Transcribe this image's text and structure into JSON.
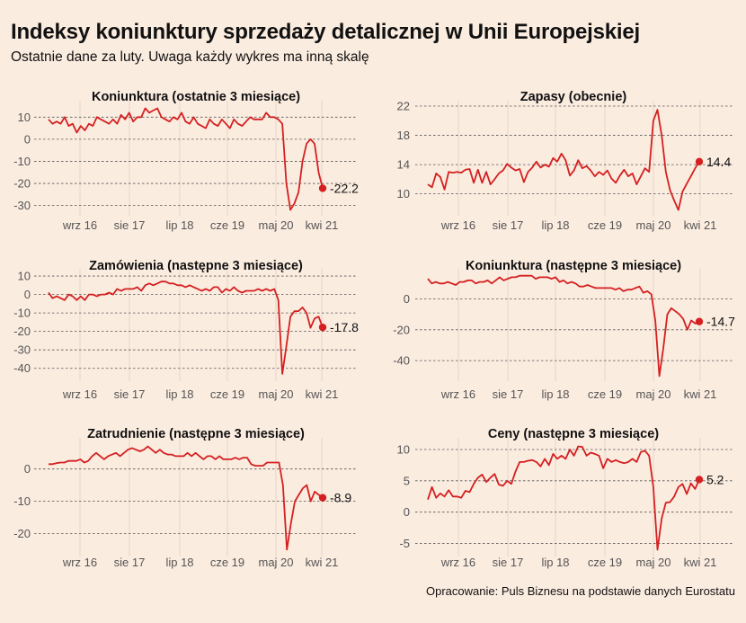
{
  "header": {
    "title": "Indeksy koniunktury sprzedaży detalicznej w Unii Europejskiej",
    "subtitle": "Ostatnie dane za luty. Uwaga każdy wykres ma inną skalę",
    "source": "Opracowanie: Puls Biznesu na podstawie danych Eurostatu"
  },
  "colors": {
    "background": "#fbece0",
    "series": "#d42020"
  },
  "chart_data": [
    {
      "type": "line",
      "title": "Koniunktura (ostatnie 3 miesiące)",
      "x_start": "2015-03",
      "x_end": "2021-02",
      "x_tick_labels": [
        "wrz 16",
        "sie 17",
        "lip 18",
        "cze 19",
        "maj 20",
        "kwi 21"
      ],
      "ylim": [
        -33,
        15
      ],
      "y_ticks": [
        10,
        0,
        -10,
        -20,
        -30
      ],
      "grid": true,
      "end_label": "-22.2",
      "values": [
        9,
        7,
        8,
        7,
        10,
        6,
        7,
        3,
        6,
        4,
        7,
        6,
        10,
        9,
        8,
        7,
        9,
        7,
        11,
        9,
        12,
        8,
        10,
        10,
        14,
        12,
        13,
        14,
        10,
        9,
        8,
        10,
        9,
        12,
        8,
        7,
        10,
        7,
        6,
        5,
        9,
        7,
        6,
        9,
        7,
        5,
        9,
        7,
        6,
        8,
        10,
        9,
        9,
        9,
        12,
        10,
        10,
        9,
        7,
        -20,
        -32,
        -29,
        -24,
        -10,
        -2,
        0,
        -2,
        -15,
        -22.2
      ]
    },
    {
      "type": "line",
      "title": "Zapasy (obecnie)",
      "x_start": "2015-03",
      "x_end": "2021-02",
      "x_tick_labels": [
        "wrz 16",
        "sie 17",
        "lip 18",
        "cze 19",
        "maj 20",
        "kwi 21"
      ],
      "ylim": [
        7.5,
        22
      ],
      "y_ticks": [
        22,
        18,
        14,
        10
      ],
      "grid": true,
      "end_label": "14.4",
      "values": [
        11.3,
        10.9,
        12.8,
        12.3,
        10.6,
        13,
        12.9,
        13,
        12.9,
        13.3,
        13.4,
        11.5,
        13.3,
        11.5,
        13,
        11.3,
        12,
        12.8,
        13.2,
        14.1,
        13.6,
        13.2,
        13.4,
        11.6,
        13,
        13.6,
        14.4,
        13.6,
        14,
        13.7,
        14.9,
        14.4,
        15.5,
        14.6,
        12.5,
        13.2,
        14.6,
        13.5,
        13.8,
        13.2,
        12.4,
        13,
        12.6,
        13.2,
        12.1,
        11.5,
        12.5,
        13.3,
        12.4,
        12.8,
        11.3,
        12.4,
        13.5,
        13,
        20,
        21.5,
        18,
        13,
        10.5,
        9.1,
        7.8,
        10.3,
        11.4,
        12.4,
        13.5,
        14.4
      ]
    },
    {
      "type": "line",
      "title": "Zamówienia (następne 3 miesiące)",
      "x_start": "2015-03",
      "x_end": "2021-02",
      "x_tick_labels": [
        "wrz 16",
        "sie 17",
        "lip 18",
        "cze 19",
        "maj 20",
        "kwi 21"
      ],
      "ylim": [
        -45,
        11
      ],
      "y_ticks": [
        10,
        0,
        -10,
        -20,
        -30,
        -40
      ],
      "grid": true,
      "end_label": "-17.8",
      "values": [
        1,
        -2,
        -1,
        -2,
        -3,
        0,
        -1,
        -3,
        -1,
        -3,
        0,
        0,
        -1,
        0,
        0,
        1,
        0,
        3,
        2,
        3,
        3,
        3,
        4,
        2,
        5,
        6,
        5,
        6,
        7,
        7,
        6,
        6,
        5,
        5,
        4,
        5,
        4,
        3,
        2,
        3,
        2,
        4,
        4,
        1,
        3,
        2,
        4,
        2,
        1,
        2,
        2,
        2,
        3,
        2,
        3,
        2,
        3,
        -3,
        -43,
        -28,
        -12,
        -9,
        -9,
        -7,
        -10,
        -18,
        -13,
        -12,
        -17.8
      ]
    },
    {
      "type": "line",
      "title": "Koniunktura (następne 3 miesiące)",
      "x_start": "2015-03",
      "x_end": "2021-02",
      "x_tick_labels": [
        "wrz 16",
        "sie 17",
        "lip 18",
        "cze 19",
        "maj 20",
        "kwi 21"
      ],
      "ylim": [
        -51,
        16
      ],
      "y_ticks": [
        0,
        -20,
        -40
      ],
      "grid": true,
      "end_label": "-14.7",
      "values": [
        13,
        10,
        11,
        10,
        10,
        11,
        10,
        9,
        11,
        11,
        12,
        12,
        10,
        11,
        11,
        12,
        10,
        12,
        14,
        12,
        13,
        14,
        14,
        15,
        15,
        15,
        15,
        13,
        14,
        14,
        14,
        13,
        14,
        11,
        12,
        10,
        11,
        10,
        8,
        8,
        9,
        8,
        7,
        7,
        7,
        7,
        7,
        6,
        7,
        5,
        6,
        6,
        7,
        8,
        4,
        5,
        3,
        -14,
        -50,
        -32,
        -10,
        -6,
        -8,
        -10,
        -13,
        -20,
        -14,
        -16,
        -14.7
      ]
    },
    {
      "type": "line",
      "title": "Zatrudnienie (następne 3 miesiące)",
      "x_start": "2015-03",
      "x_end": "2021-02",
      "x_tick_labels": [
        "wrz 16",
        "sie 17",
        "lip 18",
        "cze 19",
        "maj 20",
        "kwi 21"
      ],
      "ylim": [
        -26,
        8
      ],
      "y_ticks": [
        0,
        -10,
        -20
      ],
      "grid": true,
      "end_label": "-8.9",
      "values": [
        1.5,
        1.5,
        1.8,
        2,
        2,
        2.5,
        2.5,
        2.5,
        3,
        2,
        2.5,
        4,
        5,
        4,
        3,
        4,
        4.5,
        5,
        4,
        5,
        6,
        6.5,
        6,
        5.5,
        6,
        7,
        6,
        5,
        6,
        5,
        4.5,
        4.5,
        4,
        4,
        4,
        5,
        4,
        5,
        4,
        3,
        4,
        4,
        3,
        4,
        3,
        3,
        3,
        3.5,
        3,
        3.5,
        3.5,
        1.5,
        1,
        1,
        1,
        2,
        2,
        2,
        2,
        -5,
        -25,
        -17,
        -10,
        -8,
        -6,
        -5,
        -10,
        -7,
        -8,
        -8.9
      ]
    },
    {
      "type": "line",
      "title": "Ceny (następne 3 miesiące)",
      "x_start": "2015-03",
      "x_end": "2021-02",
      "x_tick_labels": [
        "wrz 16",
        "sie 17",
        "lip 18",
        "cze 19",
        "maj 20",
        "kwi 21"
      ],
      "ylim": [
        -6.5,
        11
      ],
      "y_ticks": [
        10,
        5,
        0,
        -5
      ],
      "grid": true,
      "end_label": "5.2",
      "values": [
        2,
        4,
        2.3,
        3,
        2.5,
        3.5,
        2.5,
        2.5,
        2.3,
        3.4,
        3.2,
        4.5,
        5.5,
        6,
        4.8,
        5.5,
        6.1,
        4.4,
        4.2,
        5,
        4.5,
        6.5,
        8,
        8,
        8.2,
        8.3,
        8,
        7.3,
        8.5,
        7.5,
        9.3,
        8.5,
        9,
        8.5,
        10,
        9,
        10.5,
        10.4,
        9,
        9.5,
        9.3,
        9,
        7,
        8.5,
        8,
        8.3,
        8,
        7.8,
        8,
        8.5,
        8,
        9.6,
        9.8,
        9,
        4,
        -6,
        -1,
        1.5,
        1.6,
        2.5,
        4,
        4.5,
        2.9,
        4.6,
        3.7,
        5.2
      ]
    }
  ]
}
